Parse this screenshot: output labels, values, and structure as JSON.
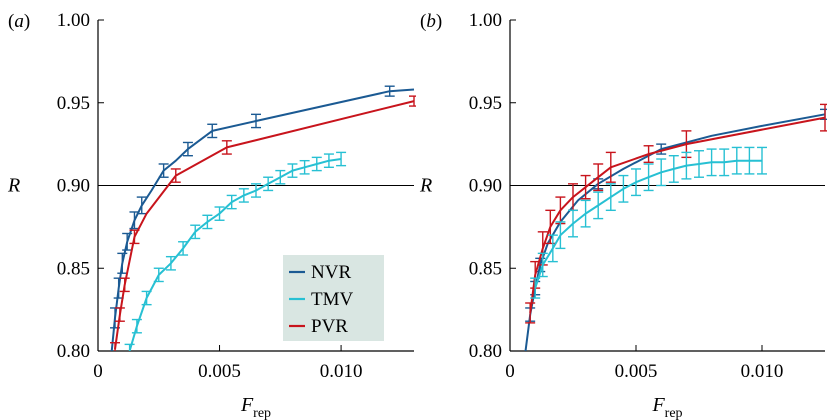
{
  "chart_data": [
    {
      "type": "line",
      "panel_label": "(a)",
      "xlabel_main": "F",
      "xlabel_sub": "rep",
      "ylabel": "R",
      "xlim": [
        0,
        0.013
      ],
      "ylim": [
        0.8,
        1.0
      ],
      "xticks": [
        "0",
        "0.005",
        "0.010"
      ],
      "xtick_values": [
        0,
        0.005,
        0.01
      ],
      "yticks": [
        "0.80",
        "0.85",
        "0.90",
        "0.95",
        "1.00"
      ],
      "ytick_values": [
        0.8,
        0.85,
        0.9,
        0.95,
        1.0
      ],
      "reference_line": 0.9,
      "legend": {
        "placement": "bottom-right",
        "background": "#d9e6e2",
        "entries": [
          "NVR",
          "TMV",
          "PVR"
        ]
      },
      "series": [
        {
          "name": "NVR",
          "color": "#1b5a93",
          "x": [
            0.00055,
            0.0007,
            0.00085,
            0.001,
            0.0012,
            0.0015,
            0.0018,
            0.0022,
            0.0027,
            0.0032,
            0.0037,
            0.0047,
            0.0065,
            0.012,
            0.013
          ],
          "y": [
            0.798,
            0.82,
            0.838,
            0.853,
            0.866,
            0.879,
            0.888,
            0.897,
            0.909,
            0.915,
            0.922,
            0.933,
            0.939,
            0.957,
            0.958
          ],
          "err": [
            0.005,
            0.006,
            0.006,
            0.006,
            0.005,
            0.005,
            0.005,
            0.005,
            0.004,
            0.004,
            0.004,
            0.004,
            0.004,
            0.003,
            0
          ],
          "err_bars": [
            false,
            true,
            true,
            true,
            true,
            true,
            true,
            false,
            true,
            false,
            true,
            true,
            true,
            true,
            false
          ]
        },
        {
          "name": "TMV",
          "color": "#27c0d3",
          "x": [
            0.0013,
            0.0016,
            0.002,
            0.0025,
            0.003,
            0.0035,
            0.004,
            0.0045,
            0.005,
            0.0055,
            0.006,
            0.0065,
            0.007,
            0.0075,
            0.008,
            0.0085,
            0.009,
            0.0095,
            0.01
          ],
          "y": [
            0.8,
            0.815,
            0.832,
            0.846,
            0.853,
            0.862,
            0.872,
            0.878,
            0.883,
            0.89,
            0.894,
            0.897,
            0.901,
            0.905,
            0.909,
            0.911,
            0.913,
            0.915,
            0.916
          ],
          "err": [
            0.004,
            0.004,
            0.004,
            0.004,
            0.004,
            0.004,
            0.004,
            0.004,
            0.004,
            0.004,
            0.004,
            0.004,
            0.004,
            0.004,
            0.004,
            0.004,
            0.004,
            0.004,
            0.004
          ],
          "err_bars": [
            true,
            true,
            true,
            true,
            true,
            true,
            true,
            true,
            true,
            true,
            true,
            true,
            true,
            true,
            true,
            true,
            true,
            true,
            true
          ]
        },
        {
          "name": "PVR",
          "color": "#c8141c",
          "x": [
            0.0007,
            0.0009,
            0.0011,
            0.0015,
            0.002,
            0.0032,
            0.0053,
            0.013
          ],
          "y": [
            0.801,
            0.822,
            0.84,
            0.869,
            0.883,
            0.906,
            0.923,
            0.951
          ],
          "err": [
            0.004,
            0.004,
            0.004,
            0.004,
            0.004,
            0.004,
            0.004,
            0.003
          ],
          "err_bars": [
            true,
            true,
            true,
            true,
            false,
            true,
            true,
            true
          ]
        }
      ]
    },
    {
      "type": "line",
      "panel_label": "(b)",
      "xlabel_main": "F",
      "xlabel_sub": "rep",
      "ylabel": "R",
      "xlim": [
        0,
        0.0125
      ],
      "ylim": [
        0.8,
        1.0
      ],
      "xticks": [
        "0",
        "0.005",
        "0.010"
      ],
      "xtick_values": [
        0,
        0.005,
        0.01
      ],
      "yticks": [
        "0.80",
        "0.85",
        "0.90",
        "0.95",
        "1.00"
      ],
      "ytick_values": [
        0.8,
        0.85,
        0.9,
        0.95,
        1.0
      ],
      "reference_line": 0.9,
      "series": [
        {
          "name": "NVR",
          "color": "#1b5a93",
          "x": [
            0.0006,
            0.0008,
            0.001,
            0.0012,
            0.0015,
            0.002,
            0.0027,
            0.0035,
            0.0045,
            0.006,
            0.008,
            0.01,
            0.0125
          ],
          "y": [
            0.798,
            0.822,
            0.838,
            0.852,
            0.865,
            0.878,
            0.891,
            0.901,
            0.91,
            0.922,
            0.93,
            0.936,
            0.943
          ],
          "err": [
            0,
            0.004,
            0.004,
            0.004,
            0.004,
            0.004,
            0.003,
            0.003,
            0.003,
            0.003,
            0,
            0,
            0.003
          ],
          "err_bars": [
            false,
            true,
            true,
            true,
            false,
            false,
            false,
            true,
            false,
            true,
            false,
            false,
            true
          ]
        },
        {
          "name": "PVR",
          "color": "#c8141c",
          "x": [
            0.0008,
            0.001,
            0.0013,
            0.0016,
            0.002,
            0.0025,
            0.003,
            0.0035,
            0.004,
            0.0055,
            0.007,
            0.0125
          ],
          "y": [
            0.823,
            0.846,
            0.862,
            0.875,
            0.885,
            0.893,
            0.899,
            0.905,
            0.911,
            0.919,
            0.925,
            0.941
          ],
          "err": [
            0.006,
            0.008,
            0.01,
            0.01,
            0.008,
            0.008,
            0.007,
            0.008,
            0.009,
            0.005,
            0.008,
            0.008
          ],
          "err_bars": [
            true,
            true,
            true,
            true,
            true,
            true,
            true,
            true,
            true,
            true,
            true,
            true
          ]
        },
        {
          "name": "TMV",
          "color": "#27c0d3",
          "x": [
            0.001,
            0.0013,
            0.0017,
            0.002,
            0.0025,
            0.003,
            0.0035,
            0.004,
            0.0045,
            0.005,
            0.0055,
            0.006,
            0.0065,
            0.007,
            0.0075,
            0.008,
            0.0085,
            0.009,
            0.0095,
            0.01
          ],
          "y": [
            0.838,
            0.852,
            0.862,
            0.87,
            0.877,
            0.883,
            0.888,
            0.893,
            0.898,
            0.902,
            0.905,
            0.908,
            0.91,
            0.912,
            0.913,
            0.914,
            0.914,
            0.915,
            0.915,
            0.915
          ],
          "err": [
            0.006,
            0.007,
            0.008,
            0.008,
            0.008,
            0.008,
            0.008,
            0.008,
            0.008,
            0.008,
            0.008,
            0.008,
            0.008,
            0.008,
            0.008,
            0.008,
            0.008,
            0.008,
            0.008,
            0.008
          ],
          "err_bars": [
            true,
            true,
            true,
            true,
            true,
            true,
            true,
            true,
            true,
            true,
            true,
            true,
            true,
            true,
            true,
            true,
            true,
            true,
            true,
            true
          ]
        }
      ]
    }
  ]
}
